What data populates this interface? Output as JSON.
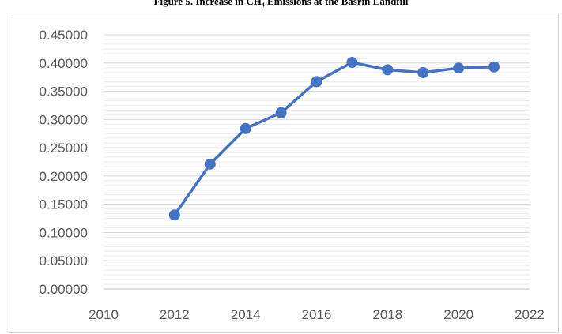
{
  "figure": {
    "caption": "Figure 5. Increase in CH₄ Emissions at the Basrin Landfill"
  },
  "chart_data": {
    "type": "scatter",
    "title": "",
    "xlabel": "",
    "ylabel": "",
    "xlim": [
      2010,
      2022
    ],
    "ylim": [
      0,
      0.45
    ],
    "x_ticks": [
      "2010",
      "2012",
      "2014",
      "2016",
      "2018",
      "2020",
      "2022"
    ],
    "y_ticks": [
      "0.00000",
      "0.05000",
      "0.10000",
      "0.15000",
      "0.20000",
      "0.25000",
      "0.30000",
      "0.35000",
      "0.40000",
      "0.45000"
    ],
    "grid": "horizontal",
    "legend": "none",
    "series": [
      {
        "x": [
          2012,
          2013,
          2014,
          2015,
          2016,
          2017,
          2018,
          2019,
          2020,
          2021
        ],
        "y": [
          0.131,
          0.221,
          0.284,
          0.312,
          0.367,
          0.401,
          0.388,
          0.383,
          0.391,
          0.393
        ],
        "color": "#4472c4",
        "line": true
      }
    ]
  }
}
